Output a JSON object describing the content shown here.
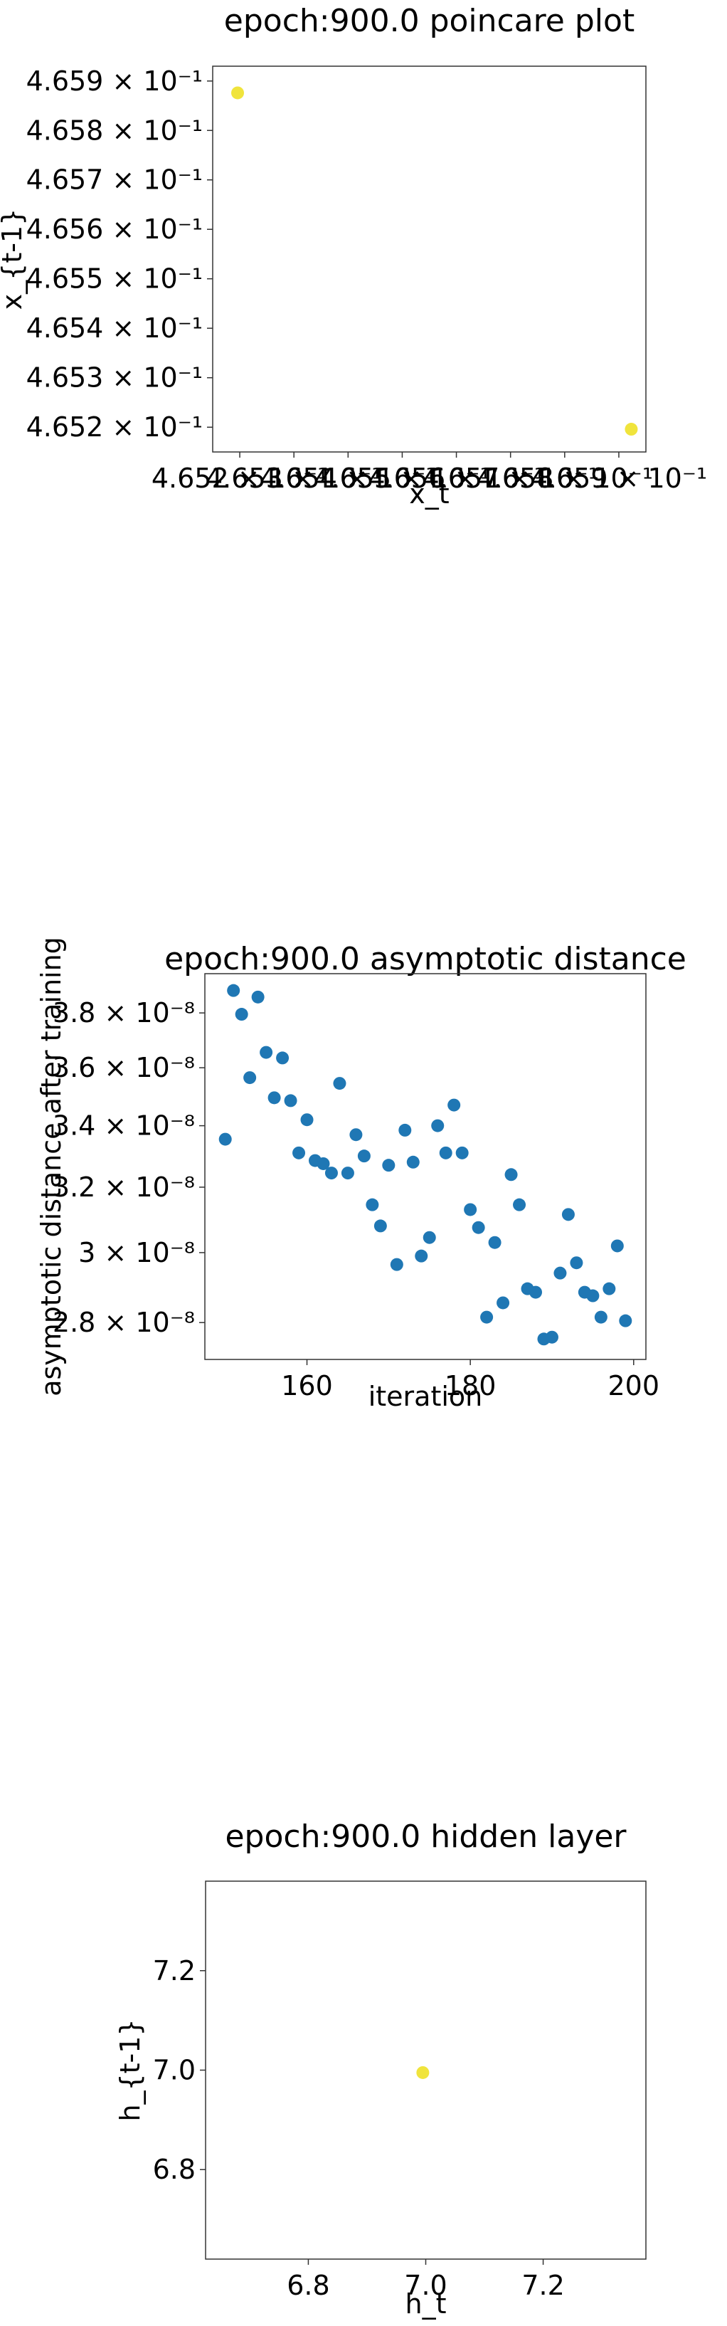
{
  "chart_data": [
    {
      "type": "scatter",
      "title": "epoch:900.0 poincare plot",
      "xlabel": "x_t",
      "ylabel": "x_{t-1}",
      "y_log_scale": true,
      "x_log_scale": true,
      "marker_color": "#f0e43c",
      "xlim": [
        0.46515,
        0.46595
      ],
      "ylim": [
        0.46515,
        0.46593
      ],
      "x_ticks": [
        {
          "value": 0.4652,
          "label": "4.652 × 10⁻¹"
        },
        {
          "value": 0.4653,
          "label": "4.653 × 10⁻¹"
        },
        {
          "value": 0.4654,
          "label": "4.654 × 10⁻¹"
        },
        {
          "value": 0.4655,
          "label": "4.655 × 10⁻¹"
        },
        {
          "value": 0.4656,
          "label": "4.656 × 10⁻¹"
        },
        {
          "value": 0.4657,
          "label": "4.657 × 10⁻¹"
        },
        {
          "value": 0.4658,
          "label": "4.658 × 10⁻¹"
        },
        {
          "value": 0.4659,
          "label": "4.659 × 10⁻¹"
        }
      ],
      "y_ticks": [
        {
          "value": 0.4652,
          "label": "4.652 × 10⁻¹"
        },
        {
          "value": 0.4653,
          "label": "4.653 × 10⁻¹"
        },
        {
          "value": 0.4654,
          "label": "4.654 × 10⁻¹"
        },
        {
          "value": 0.4655,
          "label": "4.655 × 10⁻¹"
        },
        {
          "value": 0.4656,
          "label": "4.656 × 10⁻¹"
        },
        {
          "value": 0.4657,
          "label": "4.657 × 10⁻¹"
        },
        {
          "value": 0.4658,
          "label": "4.658 × 10⁻¹"
        },
        {
          "value": 0.4659,
          "label": "4.659 × 10⁻¹"
        }
      ],
      "points": [
        {
          "x": 0.465196,
          "y": 0.465876
        },
        {
          "x": 0.465923,
          "y": 0.465196
        }
      ]
    },
    {
      "type": "scatter",
      "title": "epoch:900.0 asymptotic distance",
      "xlabel": "iteration",
      "ylabel": "asymptotic distance after training",
      "y_log_scale": true,
      "marker_color": "#1f77b4",
      "xlim": [
        147.5,
        201.5
      ],
      "ylim": [
        2.7e-08,
        3.95e-08
      ],
      "x_ticks": [
        {
          "value": 160,
          "label": "160"
        },
        {
          "value": 180,
          "label": "180"
        },
        {
          "value": 200,
          "label": "200"
        }
      ],
      "y_ticks": [
        {
          "value": 2.8e-08,
          "label": "2.8 × 10⁻⁸"
        },
        {
          "value": 3e-08,
          "label": "3 × 10⁻⁸"
        },
        {
          "value": 3.2e-08,
          "label": "3.2 × 10⁻⁸"
        },
        {
          "value": 3.4e-08,
          "label": "3.4 × 10⁻⁸"
        },
        {
          "value": 3.6e-08,
          "label": "3.6 × 10⁻⁸"
        },
        {
          "value": 3.8e-08,
          "label": "3.8 × 10⁻⁸"
        }
      ],
      "points": [
        {
          "x": 150,
          "y": 3.355e-08
        },
        {
          "x": 151,
          "y": 3.885e-08
        },
        {
          "x": 152,
          "y": 3.795e-08
        },
        {
          "x": 153,
          "y": 3.565e-08
        },
        {
          "x": 154,
          "y": 3.86e-08
        },
        {
          "x": 155,
          "y": 3.655e-08
        },
        {
          "x": 156,
          "y": 3.495e-08
        },
        {
          "x": 157,
          "y": 3.635e-08
        },
        {
          "x": 158,
          "y": 3.485e-08
        },
        {
          "x": 159,
          "y": 3.31e-08
        },
        {
          "x": 160,
          "y": 3.42e-08
        },
        {
          "x": 161,
          "y": 3.285e-08
        },
        {
          "x": 162,
          "y": 3.275e-08
        },
        {
          "x": 163,
          "y": 3.245e-08
        },
        {
          "x": 164,
          "y": 3.545e-08
        },
        {
          "x": 165,
          "y": 3.245e-08
        },
        {
          "x": 166,
          "y": 3.37e-08
        },
        {
          "x": 167,
          "y": 3.3e-08
        },
        {
          "x": 168,
          "y": 3.145e-08
        },
        {
          "x": 169,
          "y": 3.08e-08
        },
        {
          "x": 170,
          "y": 3.27e-08
        },
        {
          "x": 171,
          "y": 2.965e-08
        },
        {
          "x": 172,
          "y": 3.385e-08
        },
        {
          "x": 173,
          "y": 3.28e-08
        },
        {
          "x": 174,
          "y": 2.99e-08
        },
        {
          "x": 175,
          "y": 3.045e-08
        },
        {
          "x": 176,
          "y": 3.4e-08
        },
        {
          "x": 177,
          "y": 3.31e-08
        },
        {
          "x": 178,
          "y": 3.47e-08
        },
        {
          "x": 179,
          "y": 3.31e-08
        },
        {
          "x": 180,
          "y": 3.13e-08
        },
        {
          "x": 181,
          "y": 3.075e-08
        },
        {
          "x": 182,
          "y": 2.815e-08
        },
        {
          "x": 183,
          "y": 3.03e-08
        },
        {
          "x": 184,
          "y": 2.855e-08
        },
        {
          "x": 185,
          "y": 3.24e-08
        },
        {
          "x": 186,
          "y": 3.145e-08
        },
        {
          "x": 187,
          "y": 2.895e-08
        },
        {
          "x": 188,
          "y": 2.885e-08
        },
        {
          "x": 189,
          "y": 2.755e-08
        },
        {
          "x": 190,
          "y": 2.76e-08
        },
        {
          "x": 191,
          "y": 2.94e-08
        },
        {
          "x": 192,
          "y": 3.115e-08
        },
        {
          "x": 193,
          "y": 2.97e-08
        },
        {
          "x": 194,
          "y": 2.885e-08
        },
        {
          "x": 195,
          "y": 2.875e-08
        },
        {
          "x": 196,
          "y": 2.815e-08
        },
        {
          "x": 197,
          "y": 2.895e-08
        },
        {
          "x": 198,
          "y": 3.02e-08
        },
        {
          "x": 199,
          "y": 2.805e-08
        }
      ]
    },
    {
      "type": "scatter",
      "title": "epoch:900.0 hidden layer",
      "xlabel": "h_t",
      "ylabel": "h_{t-1}",
      "marker_color": "#f0e43c",
      "xlim": [
        6.625,
        7.375
      ],
      "ylim": [
        6.62,
        7.38
      ],
      "x_ticks": [
        {
          "value": 6.8,
          "label": "6.8"
        },
        {
          "value": 7.0,
          "label": "7.0"
        },
        {
          "value": 7.2,
          "label": "7.2"
        }
      ],
      "y_ticks": [
        {
          "value": 6.8,
          "label": "6.8"
        },
        {
          "value": 7.0,
          "label": "7.0"
        },
        {
          "value": 7.2,
          "label": "7.2"
        }
      ],
      "points": [
        {
          "x": 6.995,
          "y": 6.995
        }
      ]
    }
  ]
}
